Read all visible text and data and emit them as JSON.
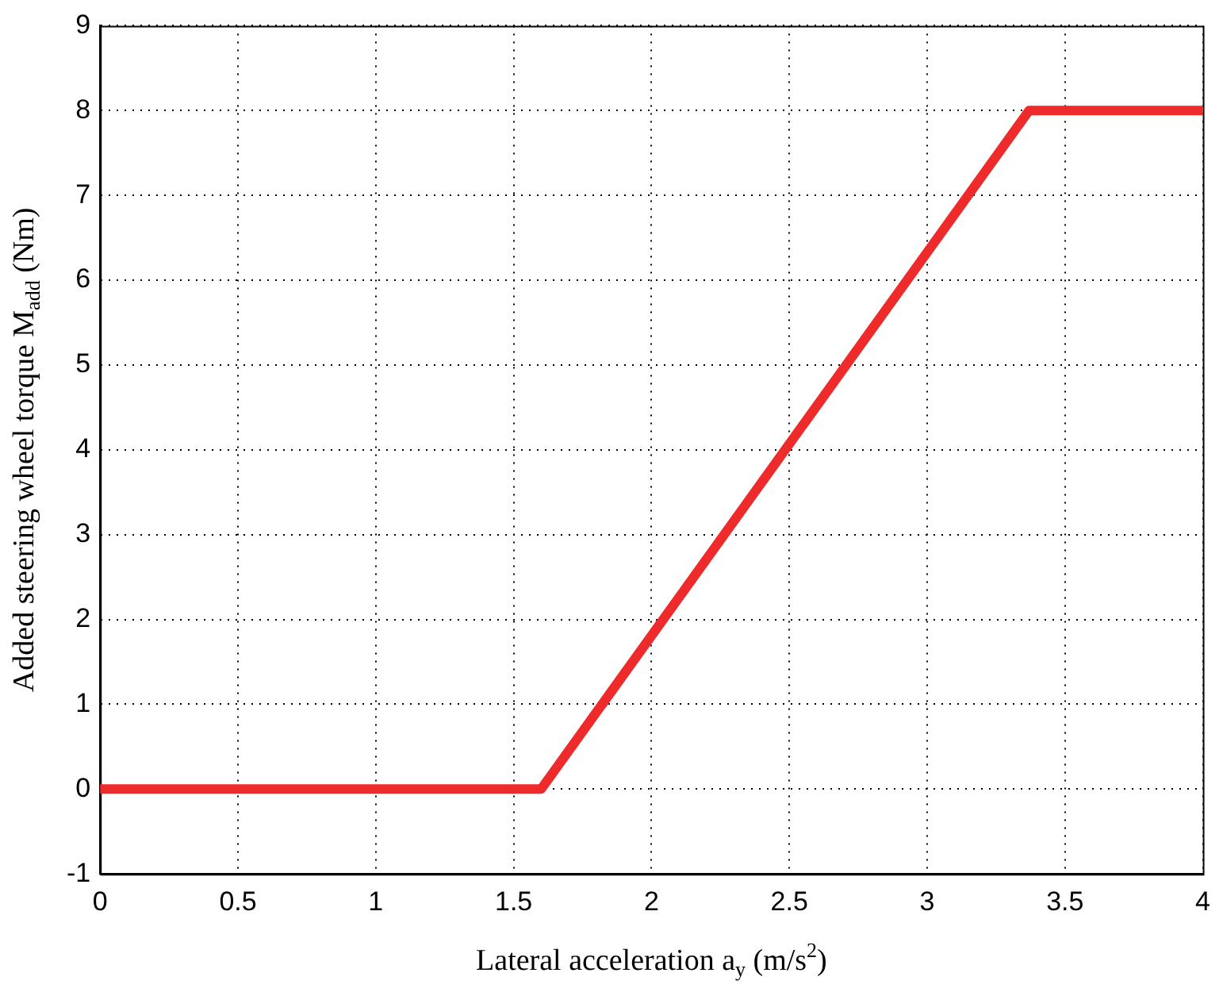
{
  "chart_data": {
    "type": "line",
    "xlabel": "Lateral acceleration a$_{y}$ (m/s$^{2}$)",
    "ylabel": "Added steering wheel torque M$_{add}$ (Nm)",
    "x": [
      0,
      1.6,
      3.37,
      4
    ],
    "series": [
      {
        "color": "#ee2a2a",
        "values": [
          0,
          0,
          8,
          8
        ]
      }
    ],
    "xlim": [
      0,
      4
    ],
    "xticks": [
      0,
      0.5,
      1,
      1.5,
      2,
      2.5,
      3,
      3.5,
      4
    ],
    "ylim": [
      -1,
      9
    ],
    "yticks": [
      -1,
      0,
      1,
      2,
      3,
      4,
      5,
      6,
      7,
      8,
      9
    ],
    "grid": true,
    "legend": false,
    "marker": "none",
    "line_style": "solid"
  }
}
